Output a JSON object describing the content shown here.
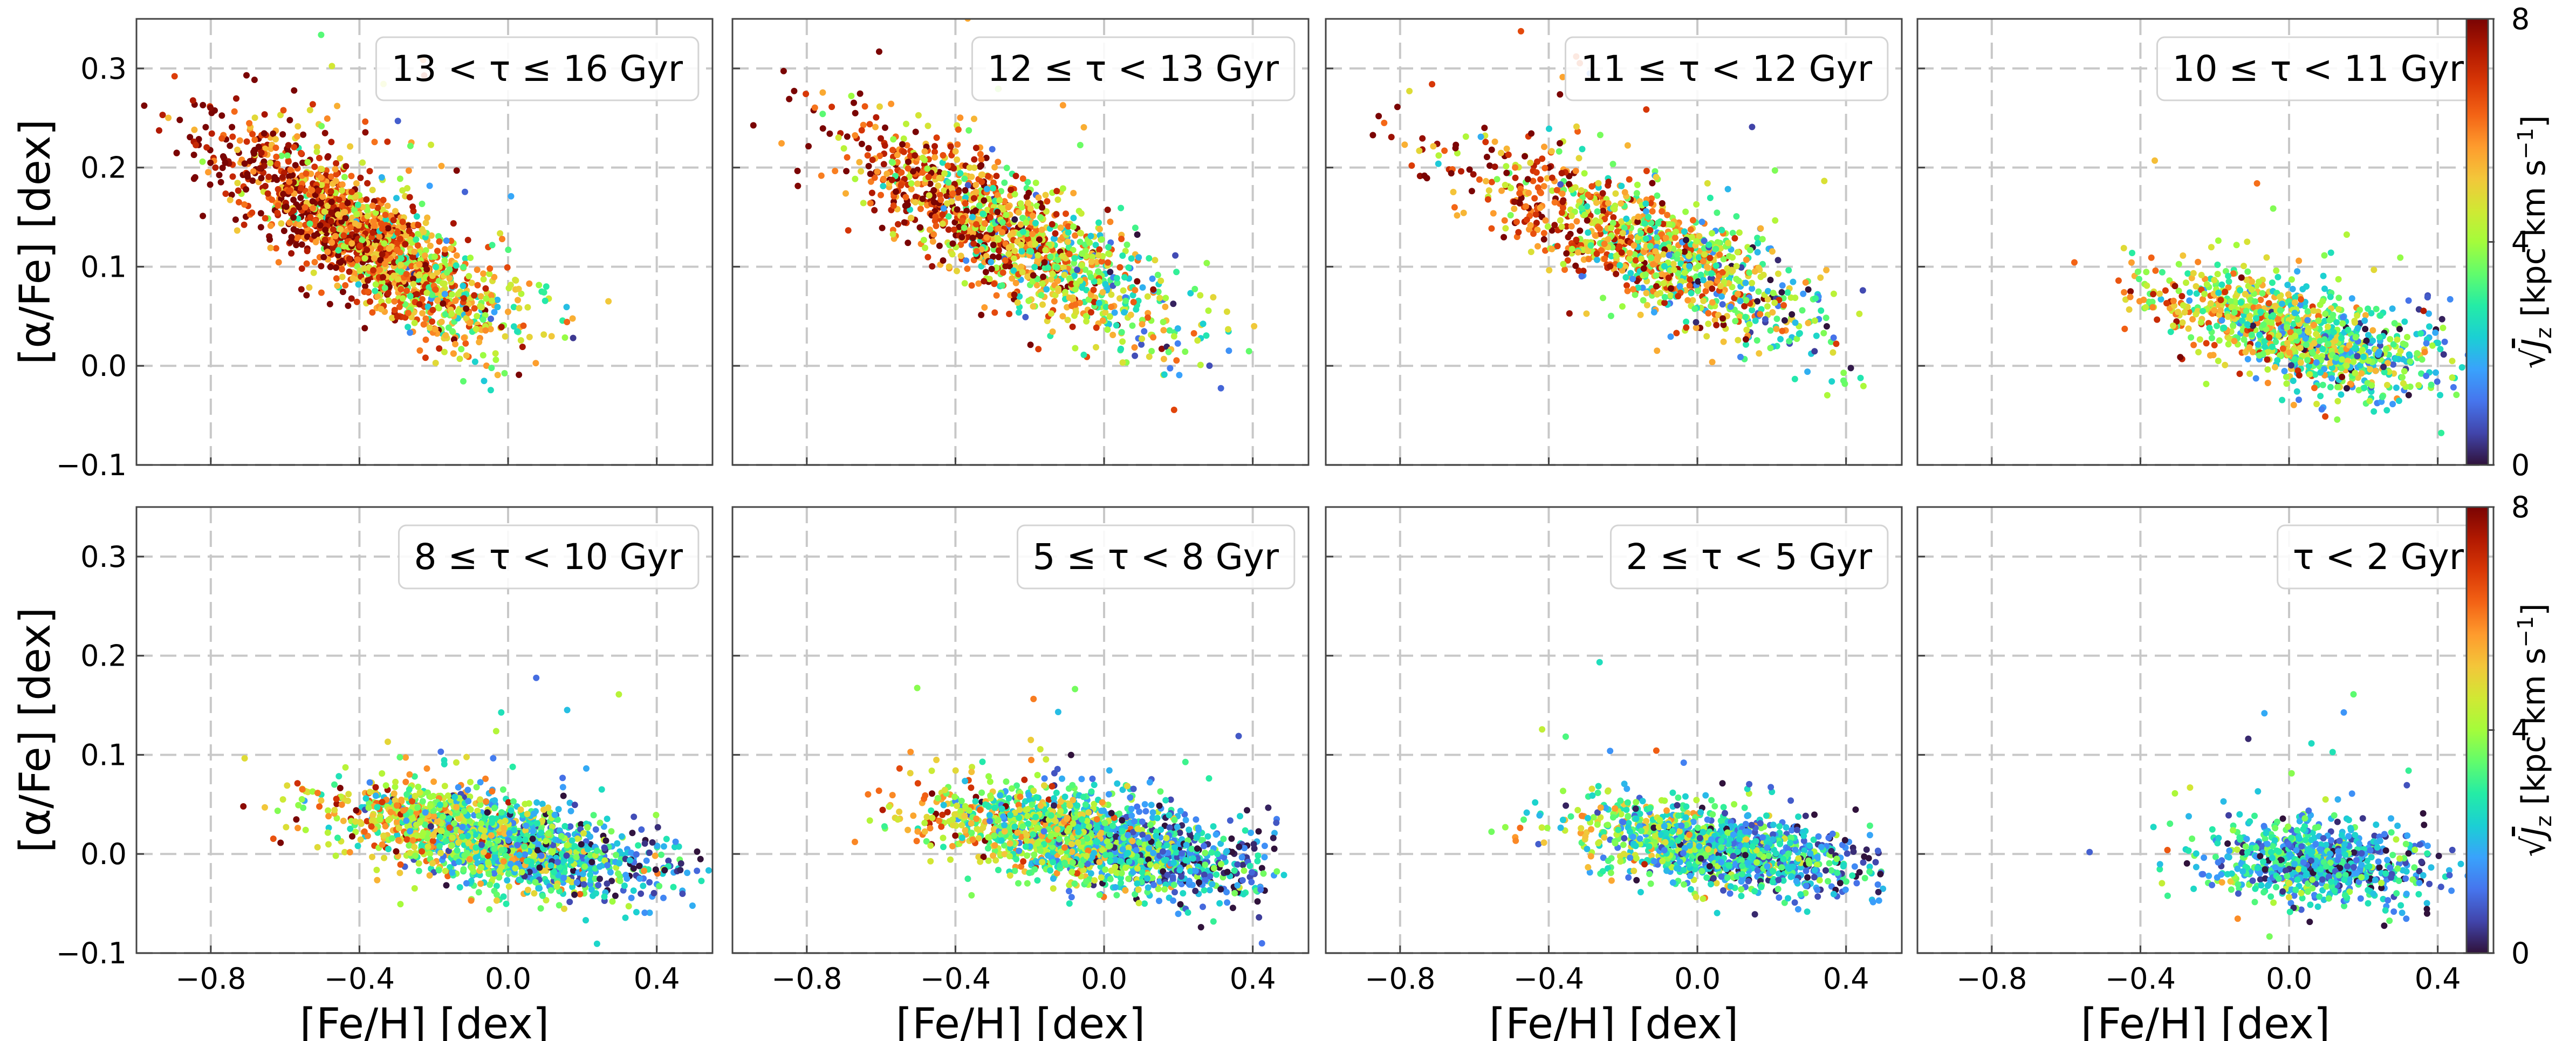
{
  "chart_data": {
    "type": "scatter",
    "x_axis": {
      "label": "[Fe/H] [dex]",
      "xlim": [
        -1.0,
        0.55
      ],
      "ticks": [
        -0.8,
        -0.4,
        0.0,
        0.4
      ],
      "tick_labels": [
        "−0.8",
        "−0.4",
        "0.0",
        "0.4"
      ]
    },
    "y_axis": {
      "label": "[α/Fe] [dex]",
      "ylim": [
        -0.1,
        0.35
      ],
      "ticks": [
        -0.1,
        0.0,
        0.1,
        0.2,
        0.3
      ],
      "tick_labels": [
        "−0.1",
        "0.0",
        "0.1",
        "0.2",
        "0.3"
      ]
    },
    "grid": true,
    "colorbar": {
      "label_radical": "√",
      "label_var": "J",
      "label_sub": "z",
      "label_unit": " [kpc km s",
      "label_exp": "−1",
      "label_close": "]",
      "range": [
        0,
        8
      ],
      "ticks": [
        0,
        4,
        8
      ],
      "tick_labels": [
        "0",
        "4",
        "8"
      ],
      "colors": [
        "#30123b",
        "#4145ab",
        "#4675ed",
        "#39a2fc",
        "#1bcfd4",
        "#24eca6",
        "#61fc6c",
        "#a4fc3b",
        "#d1e834",
        "#f3c63a",
        "#fe9b2d",
        "#f36315",
        "#d93806",
        "#b11901",
        "#7a0403"
      ]
    },
    "panels": [
      {
        "label": "13 < τ ≤ 16 Gyr",
        "n_points": 1600,
        "trend": {
          "x_center": -0.38,
          "x_sd": 0.2,
          "x_min": -0.98,
          "x_max": 0.35,
          "y_at_xmin": 0.27,
          "y_slope": -0.24,
          "y_floor": 0.05,
          "y_sd": 0.03
        },
        "color_mean": 6.0,
        "color_sd": 1.6,
        "color_trend": -4.0
      },
      {
        "label": "12 ≤ τ < 13 Gyr",
        "n_points": 1300,
        "trend": {
          "x_center": -0.25,
          "x_sd": 0.22,
          "x_min": -0.95,
          "x_max": 0.45,
          "y_at_xmin": 0.27,
          "y_slope": -0.2,
          "y_floor": 0.04,
          "y_sd": 0.032
        },
        "color_mean": 5.3,
        "color_sd": 1.8,
        "color_trend": -4.0
      },
      {
        "label": "11 ≤ τ < 12 Gyr",
        "n_points": 1100,
        "trend": {
          "x_center": -0.12,
          "x_sd": 0.24,
          "x_min": -0.9,
          "x_max": 0.45,
          "y_at_xmin": 0.24,
          "y_slope": -0.16,
          "y_floor": 0.03,
          "y_sd": 0.03
        },
        "color_mean": 4.8,
        "color_sd": 1.8,
        "color_trend": -4.5
      },
      {
        "label": "10 ≤ τ < 11 Gyr",
        "n_points": 1000,
        "trend": {
          "x_center": 0.03,
          "x_sd": 0.2,
          "x_min": -0.8,
          "x_max": 0.5,
          "y_at_xmin": 0.13,
          "y_slope": -0.12,
          "y_floor": 0.01,
          "y_sd": 0.025
        },
        "color_mean": 3.8,
        "color_sd": 1.5,
        "color_trend": -3.5
      },
      {
        "label": "8 ≤ τ < 10 Gyr",
        "n_points": 1600,
        "trend": {
          "x_center": -0.05,
          "x_sd": 0.22,
          "x_min": -0.9,
          "x_max": 0.55,
          "y_at_xmin": 0.08,
          "y_slope": -0.08,
          "y_floor": -0.01,
          "y_sd": 0.022
        },
        "color_mean": 3.3,
        "color_sd": 1.5,
        "color_trend": -4.0
      },
      {
        "label": "5 ≤ τ < 8 Gyr",
        "n_points": 1700,
        "trend": {
          "x_center": -0.03,
          "x_sd": 0.22,
          "x_min": -0.85,
          "x_max": 0.5,
          "y_at_xmin": 0.07,
          "y_slope": -0.07,
          "y_floor": -0.01,
          "y_sd": 0.022
        },
        "color_mean": 3.0,
        "color_sd": 1.5,
        "color_trend": -4.0
      },
      {
        "label": "2 ≤ τ < 5 Gyr",
        "n_points": 1200,
        "trend": {
          "x_center": 0.05,
          "x_sd": 0.2,
          "x_min": -0.7,
          "x_max": 0.5,
          "y_at_xmin": 0.05,
          "y_slope": -0.06,
          "y_floor": -0.015,
          "y_sd": 0.02
        },
        "color_mean": 2.6,
        "color_sd": 1.3,
        "color_trend": -3.0
      },
      {
        "label": "τ < 2 Gyr",
        "n_points": 800,
        "trend": {
          "x_center": 0.08,
          "x_sd": 0.15,
          "x_min": -0.6,
          "x_max": 0.5,
          "y_at_xmin": 0.01,
          "y_slope": -0.03,
          "y_floor": -0.03,
          "y_sd": 0.02
        },
        "color_mean": 2.0,
        "color_sd": 1.2,
        "color_trend": -2.0
      }
    ]
  }
}
